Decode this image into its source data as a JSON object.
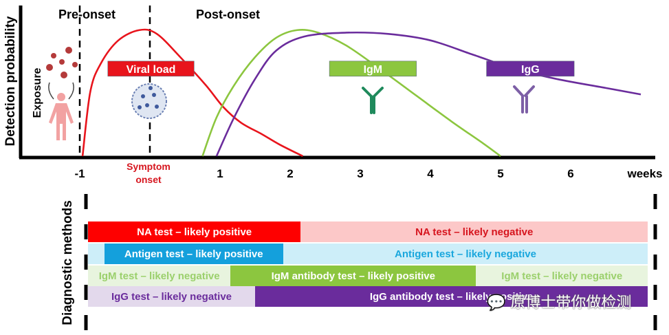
{
  "chart_data": {
    "type": "line",
    "title": "",
    "ylabel": "Detection probability",
    "xlabel": "weeks",
    "x_ticks": [
      -1,
      1,
      2,
      3,
      4,
      5,
      6
    ],
    "x_tick_labels": [
      "-1",
      "1",
      "2",
      "3",
      "4",
      "5",
      "6"
    ],
    "xlim": [
      -2,
      7.2
    ],
    "ylim": [
      0,
      1
    ],
    "phase_labels": {
      "pre": "Pre-onset",
      "post": "Post-onset"
    },
    "symptom_onset_label": [
      "Symptom",
      "onset"
    ],
    "exposure_label": "Exposure",
    "reference_lines": [
      {
        "name": "exposure",
        "x": -1
      },
      {
        "name": "symptom-onset",
        "x": 0
      }
    ],
    "series": [
      {
        "name": "Viral load",
        "color": "#e8141c",
        "points": [
          [
            -0.96,
            0
          ],
          [
            -0.85,
            0.5
          ],
          [
            -0.7,
            0.72
          ],
          [
            -0.45,
            0.9
          ],
          [
            -0.15,
            0.98
          ],
          [
            0.1,
            0.95
          ],
          [
            0.45,
            0.76
          ],
          [
            0.8,
            0.55
          ],
          [
            1.05,
            0.38
          ],
          [
            1.3,
            0.26
          ],
          [
            1.6,
            0.17
          ],
          [
            1.85,
            0.09
          ],
          [
            2.18,
            0
          ]
        ]
      },
      {
        "name": "IgM",
        "color": "#8cc63f",
        "points": [
          [
            0.75,
            0
          ],
          [
            0.95,
            0.3
          ],
          [
            1.2,
            0.55
          ],
          [
            1.5,
            0.77
          ],
          [
            1.8,
            0.92
          ],
          [
            2.1,
            0.98
          ],
          [
            2.4,
            0.96
          ],
          [
            2.8,
            0.86
          ],
          [
            3.3,
            0.67
          ],
          [
            3.8,
            0.47
          ],
          [
            4.3,
            0.27
          ],
          [
            4.75,
            0.1
          ],
          [
            5.0,
            0
          ]
        ]
      },
      {
        "name": "IgG",
        "color": "#6a2c9c",
        "points": [
          [
            0.95,
            0
          ],
          [
            1.2,
            0.3
          ],
          [
            1.5,
            0.6
          ],
          [
            1.8,
            0.82
          ],
          [
            2.2,
            0.93
          ],
          [
            2.8,
            0.96
          ],
          [
            3.4,
            0.95
          ],
          [
            4.0,
            0.9
          ],
          [
            4.6,
            0.79
          ],
          [
            5.2,
            0.68
          ],
          [
            5.8,
            0.6
          ],
          [
            6.5,
            0.53
          ],
          [
            7.0,
            0.48
          ]
        ]
      }
    ],
    "annotations": [
      {
        "label": "Viral load",
        "fill": "#e8141c",
        "text_color": "#ffffff",
        "x_start": -0.6,
        "x_end": 0.63,
        "y": 0.68
      },
      {
        "label": "IgM",
        "fill": "#8cc63f",
        "text_color": "#ffffff",
        "x_start": 2.56,
        "x_end": 3.8,
        "y": 0.68
      },
      {
        "label": "IgG",
        "fill": "#6a2c9c",
        "text_color": "#ffffff",
        "x_start": 4.8,
        "x_end": 6.05,
        "y": 0.68
      }
    ]
  },
  "diagnostics": {
    "ylabel": "Diagnostic methods",
    "rows": [
      {
        "name": "na-test",
        "segments": [
          {
            "label": "NA test – likely positive",
            "x_start": -1,
            "x_end": 2.15,
            "fill": "#fe0000",
            "text_color": "#ffffff"
          },
          {
            "label": "NA test – likely negative",
            "x_start": 2.15,
            "x_end": 7.1,
            "fill": "#fcc8c8",
            "text_color": "#d6151e"
          }
        ]
      },
      {
        "name": "antigen-test",
        "segments": [
          {
            "label": "",
            "x_start": -1,
            "x_end": -0.65,
            "fill": "#cdeef9",
            "text_color": "#1aa7dd"
          },
          {
            "label": "Antigen test – likely positive",
            "x_start": -0.65,
            "x_end": 1.9,
            "fill": "#14a0dc",
            "text_color": "#ffffff"
          },
          {
            "label": "Antigen test – likely negative",
            "x_start": 1.9,
            "x_end": 7.1,
            "fill": "#cdeef9",
            "text_color": "#1aa7dd"
          }
        ]
      },
      {
        "name": "igm-test",
        "segments": [
          {
            "label": "IgM test – likely negative",
            "x_start": -1,
            "x_end": 1.15,
            "fill": "#e8f4de",
            "text_color": "#9bd06c"
          },
          {
            "label": "IgM antibody test – likely positive",
            "x_start": 1.15,
            "x_end": 4.65,
            "fill": "#8cc63f",
            "text_color": "#ffffff"
          },
          {
            "label": "IgM test – likely negative",
            "x_start": 4.65,
            "x_end": 7.1,
            "fill": "#e8f4de",
            "text_color": "#9bd06c"
          }
        ]
      },
      {
        "name": "igg-test",
        "segments": [
          {
            "label": "IgG test – likely negative",
            "x_start": -1,
            "x_end": 1.5,
            "fill": "#e3d9ec",
            "text_color": "#6a2c9c"
          },
          {
            "label": "IgG antibody test – likely positive",
            "x_start": 1.5,
            "x_end": 7.1,
            "fill": "#6a2c9c",
            "text_color": "#ffffff"
          }
        ]
      }
    ]
  },
  "watermark": {
    "text": "原博士带你做检测",
    "icon": "wechat-icon"
  }
}
